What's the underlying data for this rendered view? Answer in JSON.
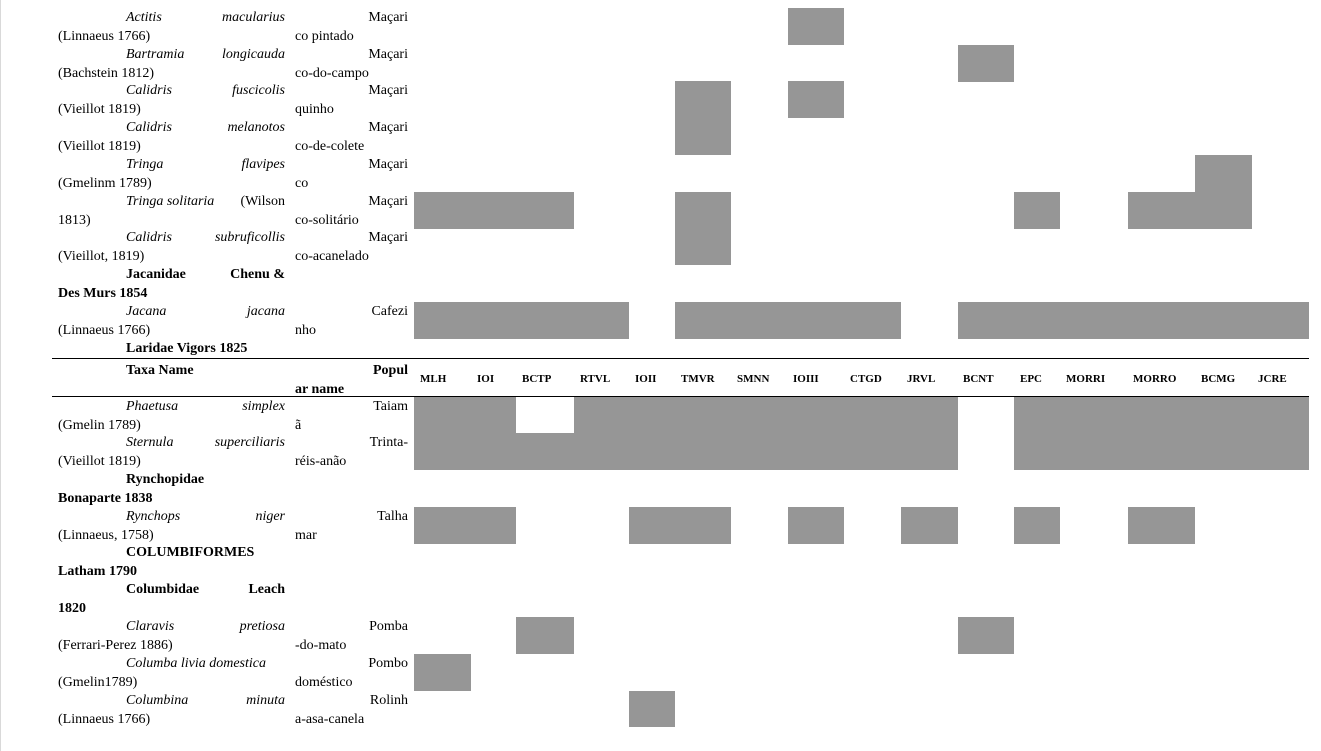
{
  "columns": [
    "MLH",
    "IOI",
    "BCTP",
    "RTVL",
    "IOII",
    "TMVR",
    "SMNN",
    "IOIII",
    "CTGD",
    "JRVL",
    "BCNT",
    "EPC",
    "MORRI",
    "MORRO",
    "BCMG",
    "JCRE"
  ],
  "header": {
    "taxa_label": "Taxa Name",
    "pop_line1": "Popul",
    "pop_line2": "ar name"
  },
  "rows": [
    {
      "kind": "species",
      "a": "Actitis",
      "b": "macularius",
      "c": "(Linnaeus 1766)",
      "p1": "Maçari",
      "p2": "co pintado",
      "present": [
        7
      ]
    },
    {
      "kind": "species",
      "a": "Bartramia",
      "b": "longicauda",
      "c": "(Bachstein 1812)",
      "p1": "Maçari",
      "p2": "co-do-campo",
      "present": [
        10
      ]
    },
    {
      "kind": "species",
      "a": "Calidris",
      "b": "fuscicolis",
      "c": "(Vieillot 1819)",
      "p1": "Maçari",
      "p2": "quinho",
      "present": [
        5,
        7
      ]
    },
    {
      "kind": "species",
      "a": "Calidris",
      "b": "melanotos",
      "c": "(Vieillot 1819)",
      "p1": "Maçari",
      "p2": "co-de-colete",
      "present": [
        5
      ]
    },
    {
      "kind": "species",
      "a": "Tringa",
      "b": "flavipes",
      "c": "(Gmelinm 1789)",
      "p1": "Maçari",
      "p2": "co",
      "present": [
        14
      ]
    },
    {
      "kind": "species",
      "a": "Tringa solitaria",
      "b": "(Wilson",
      "c": "1813)",
      "p1": "Maçari",
      "p2": "co-solitário",
      "present": [
        0,
        1,
        2,
        5,
        11,
        13,
        14
      ],
      "b_plain": true
    },
    {
      "kind": "species",
      "a": "Calidris",
      "b": "subruficollis",
      "c": "(Vieillot, 1819)",
      "p1": "Maçari",
      "p2": "co-acanelado",
      "present": [
        5
      ]
    },
    {
      "kind": "group",
      "a": "Jacanidae",
      "b": "Chenu &",
      "c": "Des Murs 1854"
    },
    {
      "kind": "species",
      "a": "Jacana",
      "b": "jacana",
      "c": "(Linnaeus 1766)",
      "p1": "Cafezi",
      "p2": "nho",
      "present": [
        0,
        1,
        2,
        3,
        5,
        6,
        7,
        8,
        10,
        11,
        12,
        13,
        14,
        15
      ]
    },
    {
      "kind": "group1",
      "a": "Laridae Vigors 1825"
    },
    {
      "kind": "species",
      "a": "Phaetusa",
      "b": "simplex",
      "c": "(Gmelin 1789)",
      "p1": "Taiam",
      "p2": "ã",
      "present": [
        0,
        1,
        3,
        4,
        5,
        6,
        7,
        8,
        9,
        11,
        12,
        13,
        14,
        15
      ]
    },
    {
      "kind": "species",
      "a": "Sternula",
      "b": "superciliaris",
      "c": "(Vieillot 1819)",
      "p1": "Trinta-",
      "p2": "réis-anão",
      "present": [
        0,
        1,
        2,
        3,
        4,
        5,
        6,
        7,
        8,
        9,
        11,
        12,
        13,
        14,
        15
      ]
    },
    {
      "kind": "group",
      "a": "Rynchopidae",
      "b": "",
      "c": "Bonaparte 1838"
    },
    {
      "kind": "species",
      "a": "Rynchops",
      "b": "niger",
      "c": "(Linnaeus, 1758)",
      "p1": "Talha",
      "p2": "mar",
      "present": [
        0,
        1,
        4,
        5,
        7,
        9,
        11,
        13
      ]
    },
    {
      "kind": "group",
      "a": "COLUMBIFORMES",
      "b": "",
      "c": "Latham 1790"
    },
    {
      "kind": "group",
      "a": "Columbidae",
      "b": "Leach",
      "c": "1820"
    },
    {
      "kind": "species",
      "a": "Claravis",
      "b": "pretiosa",
      "c": "(Ferrari-Perez 1886)",
      "p1": "Pomba",
      "p2": "-do-mato",
      "present": [
        2,
        10
      ]
    },
    {
      "kind": "species",
      "a": "Columba livia domestica",
      "b": "",
      "c": "(Gmelin1789)",
      "p1": "Pombo",
      "p2": "doméstico",
      "present": [
        0
      ]
    },
    {
      "kind": "species",
      "a": "Columbina",
      "b": "minuta",
      "c": "(Linnaeus 1766)",
      "p1": "Rolinh",
      "p2": "a-asa-canela",
      "present": [
        4
      ]
    }
  ]
}
